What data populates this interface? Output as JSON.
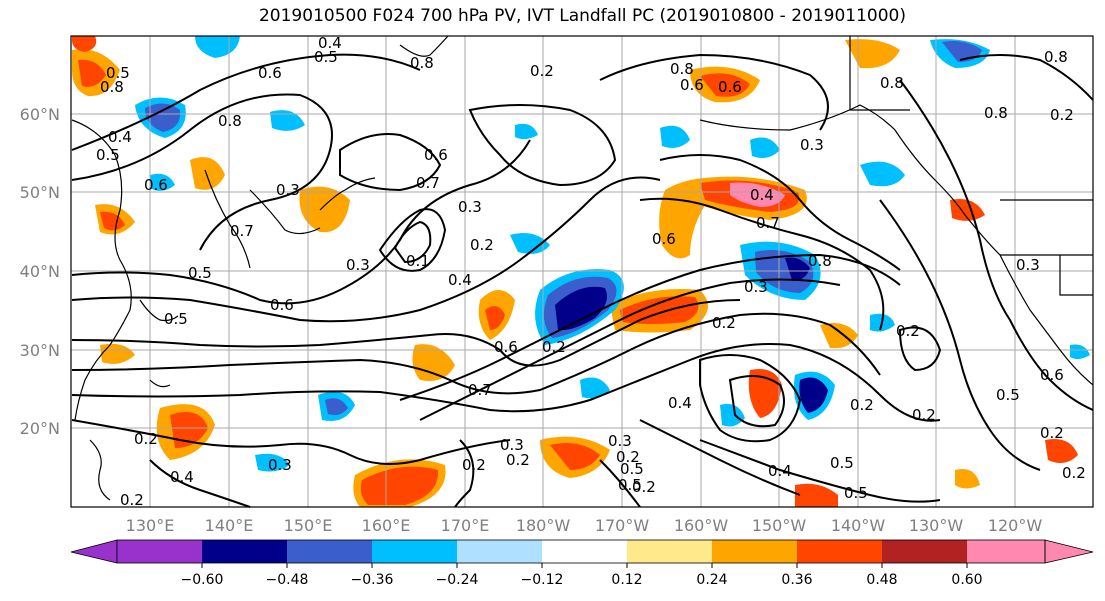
{
  "title": "2019010500 F024 700 hPa PV, IVT Landfall PC (2019010800 - 2019011000)",
  "lat_labels": [
    "60°N",
    "50°N",
    "40°N",
    "30°N",
    "20°N"
  ],
  "lon_labels": [
    "130°E",
    "140°E",
    "150°E",
    "160°E",
    "170°E",
    "180°W",
    "170°W",
    "160°W",
    "150°W",
    "140°W",
    "130°W",
    "120°W"
  ],
  "colorbar": {
    "ticks": [
      "−0.60",
      "−0.48",
      "−0.36",
      "−0.24",
      "−0.12",
      "0.12",
      "0.24",
      "0.36",
      "0.48",
      "0.60"
    ],
    "colors": [
      "#9932cc",
      "#00008b",
      "#3a5fcd",
      "#00bfff",
      "#b0e0ff",
      "#ffffff",
      "#ffe98a",
      "#ffa500",
      "#ff4500",
      "#b22222",
      "#ff88b0"
    ]
  },
  "contour_labels": [
    "0.4",
    "0.5",
    "0.8",
    "0.2",
    "0.6",
    "0.8",
    "0.5",
    "0.6",
    "0.7",
    "0.6",
    "0.4",
    "0.5",
    "0.8",
    "0.8",
    "0.6",
    "0.3",
    "0.6",
    "0.7",
    "0.3",
    "0.2",
    "0.4",
    "0.7",
    "0.6",
    "0.1",
    "0.5",
    "0.6",
    "0.8",
    "0.3",
    "0.2",
    "0.2",
    "0.3",
    "0.6",
    "0.2",
    "0.5",
    "0.4",
    "0.2",
    "0.3",
    "0.7",
    "0.4",
    "0.2",
    "0.3",
    "0.3",
    "0.2",
    "0.5",
    "0.5",
    "0.2",
    "0.2",
    "0.4",
    "0.5",
    "0.6",
    "0.5",
    "0.2",
    "0.2",
    "0.3",
    "0.2",
    "0.4",
    "0.2",
    "0.5",
    "0.2",
    "0.3",
    "0.8",
    "0.8",
    "0.2",
    "0.8"
  ]
}
